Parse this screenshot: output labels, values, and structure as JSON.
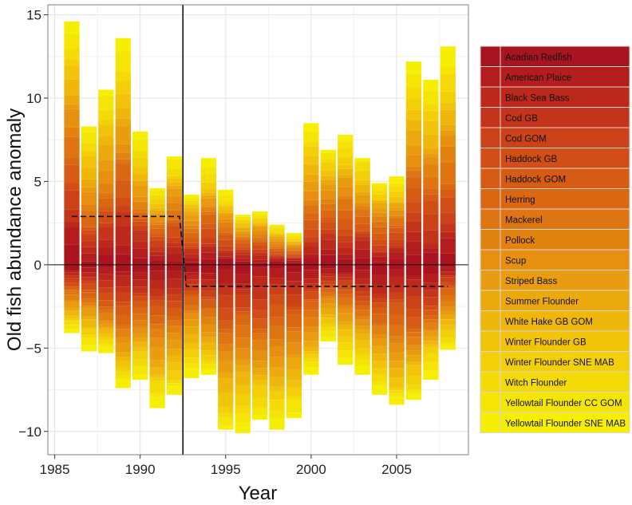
{
  "chart_data": {
    "type": "bar",
    "stacked": true,
    "diverging": true,
    "xlabel": "Year",
    "ylabel": "Old fish abundance anomaly",
    "xlim": [
      1984.6,
      2009.2
    ],
    "ylim": [
      -11.4,
      15.6
    ],
    "x_ticks": [
      1985,
      1990,
      1995,
      2000,
      2005
    ],
    "y_ticks": [
      -10,
      -5,
      0,
      5,
      10,
      15
    ],
    "grid": true,
    "legend_position": "right",
    "years": [
      1986,
      1987,
      1988,
      1989,
      1990,
      1991,
      1992,
      1993,
      1994,
      1995,
      1996,
      1997,
      1998,
      1999,
      2000,
      2001,
      2002,
      2003,
      2004,
      2005,
      2006,
      2007,
      2008
    ],
    "species": [
      {
        "name": "Acadian Redfish",
        "color": "#A8141F"
      },
      {
        "name": "American Plaice",
        "color": "#B31D1D"
      },
      {
        "name": "Black Sea Bass",
        "color": "#BC281B"
      },
      {
        "name": "Cod GB",
        "color": "#C4341A"
      },
      {
        "name": "Cod GOM",
        "color": "#CB4118"
      },
      {
        "name": "Haddock GB",
        "color": "#D14E16"
      },
      {
        "name": "Haddock GOM",
        "color": "#D65B14"
      },
      {
        "name": "Herring",
        "color": "#DA6813"
      },
      {
        "name": "Mackerel",
        "color": "#DE7512"
      },
      {
        "name": "Pollock",
        "color": "#E28211"
      },
      {
        "name": "Scup",
        "color": "#E68F10"
      },
      {
        "name": "Striped Bass",
        "color": "#E99C0F"
      },
      {
        "name": "Summer Flounder",
        "color": "#ECA90D"
      },
      {
        "name": "White Hake GB GOM",
        "color": "#EFB60C"
      },
      {
        "name": "Winter Flounder GB",
        "color": "#F1C30A"
      },
      {
        "name": "Winter Flounder SNE MAB",
        "color": "#F3CF08"
      },
      {
        "name": "Witch Flounder",
        "color": "#F4DA06"
      },
      {
        "name": "Yellowtail Flounder CC GOM",
        "color": "#F5E504"
      },
      {
        "name": "Yellowtail Flounder SNE MAB",
        "color": "#F6EE03"
      }
    ],
    "positive_totals": [
      14.6,
      8.3,
      10.5,
      13.6,
      8.0,
      4.6,
      6.5,
      4.2,
      6.4,
      4.5,
      3.0,
      3.2,
      2.4,
      1.9,
      8.5,
      6.9,
      7.8,
      6.4,
      4.9,
      5.3,
      12.2,
      11.1,
      13.1
    ],
    "negative_totals": [
      -4.1,
      -5.2,
      -5.3,
      -7.4,
      -6.9,
      -8.6,
      -7.8,
      -6.8,
      -6.6,
      -9.9,
      -10.1,
      -9.3,
      -9.9,
      -9.2,
      -6.6,
      -4.6,
      -6.0,
      -6.6,
      -7.8,
      -8.4,
      -8.1,
      -6.9,
      -5.1
    ],
    "reference_lines": {
      "vertical_x": 1992.5,
      "mean_before": 2.9,
      "mean_after": -1.3,
      "period_before": [
        1986,
        1992
      ],
      "period_after": [
        1993,
        2008
      ]
    }
  }
}
